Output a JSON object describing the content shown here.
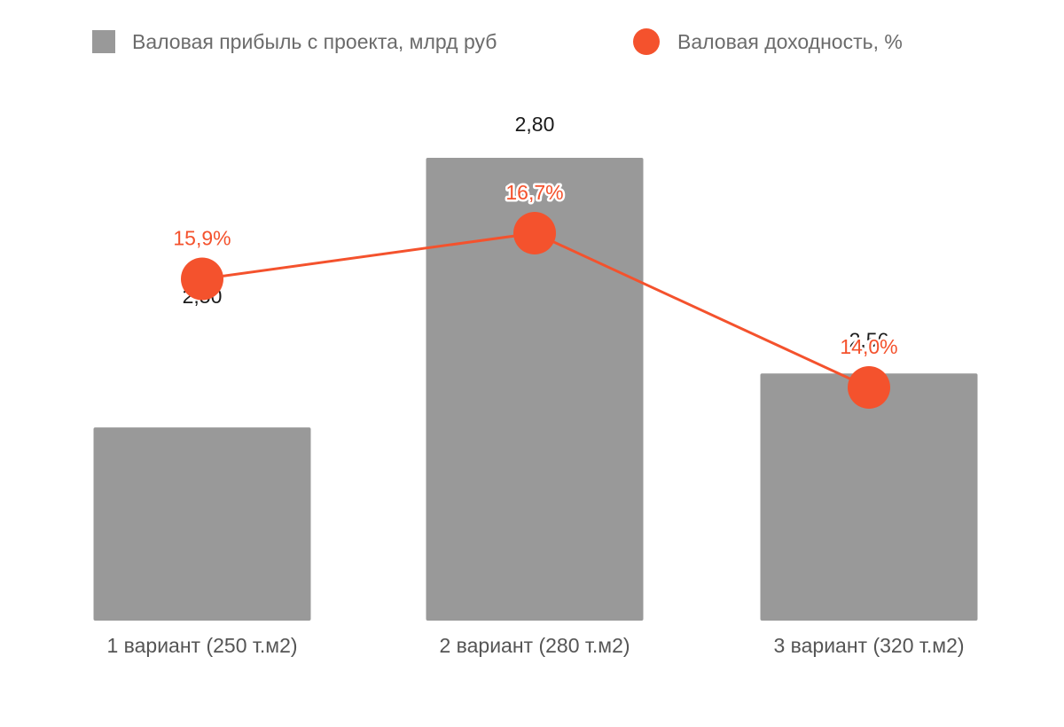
{
  "chart_data": {
    "type": "bar",
    "categories": [
      "1 вариант (250 т.м2)",
      "2 вариант (280 т.м2)",
      "3 вариант (320 т.м2)"
    ],
    "series": [
      {
        "name": "Валовая прибыль с проекта, млрд руб",
        "type": "bar",
        "axis": "left",
        "values": [
          2.5,
          2.8,
          2.56
        ],
        "labels": [
          "2,50",
          "2,80",
          "2,56"
        ],
        "color": "#999999"
      },
      {
        "name": "Валовая доходность, %",
        "type": "line",
        "axis": "right",
        "values": [
          15.9,
          16.7,
          14.0
        ],
        "labels": [
          "15,9%",
          "16,7%",
          "14,0%"
        ],
        "color": "#f4522d"
      }
    ],
    "legend_position": "top",
    "grid": false
  }
}
